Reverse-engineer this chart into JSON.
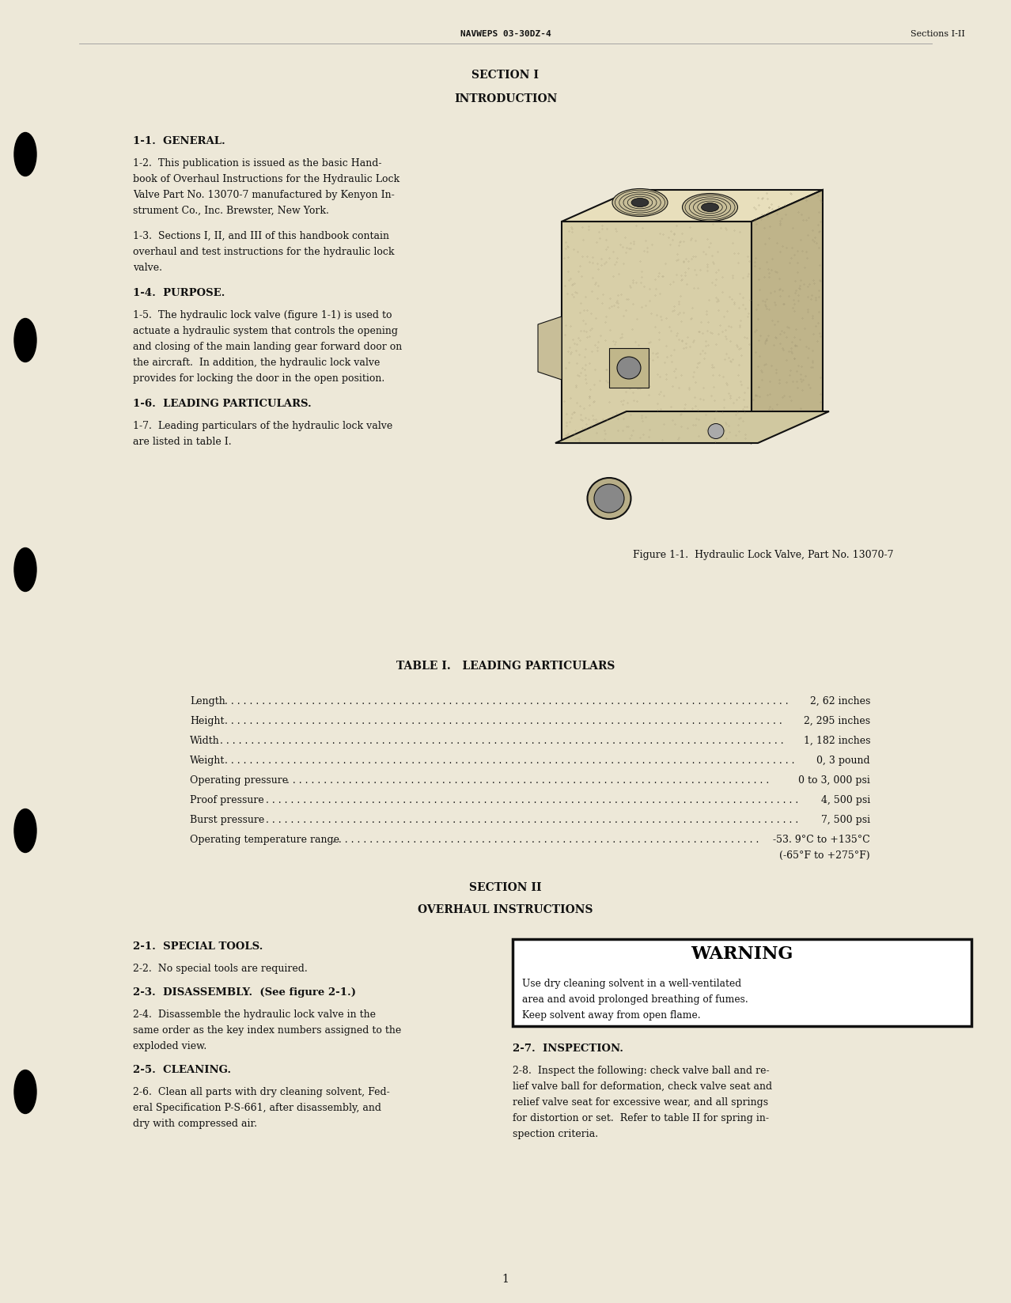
{
  "bg_color": "#ede8d8",
  "text_color": "#111111",
  "header_center": "NAVWEPS 03-30DZ-4",
  "header_right": "Sections I-II",
  "section1_title": "SECTION I",
  "section1_subtitle": "INTRODUCTION",
  "para_1_1": "1-1.  GENERAL.",
  "para_1_2_lines": [
    "1-2.  This publication is issued as the basic Hand-",
    "book of Overhaul Instructions for the Hydraulic Lock",
    "Valve Part No. 13070-7 manufactured by Kenyon In-",
    "strument Co., Inc. Brewster, New York."
  ],
  "para_1_3_lines": [
    "1-3.  Sections I, II, and III of this handbook contain",
    "overhaul and test instructions for the hydraulic lock",
    "valve."
  ],
  "para_1_4": "1-4.  PURPOSE.",
  "para_1_5_lines": [
    "1-5.  The hydraulic lock valve (figure 1-1) is used to",
    "actuate a hydraulic system that controls the opening",
    "and closing of the main landing gear forward door on",
    "the aircraft.  In addition, the hydraulic lock valve",
    "provides for locking the door in the open position."
  ],
  "para_1_6": "1-6.  LEADING PARTICULARS.",
  "para_1_7_lines": [
    "1-7.  Leading particulars of the hydraulic lock valve",
    "are listed in table I."
  ],
  "fig_caption": "Figure 1-1.  Hydraulic Lock Valve, Part No. 13070-7",
  "table_title": "TABLE I.   LEADING PARTICULARS",
  "table_rows": [
    [
      "Length",
      "2, 62 inches"
    ],
    [
      "Height",
      "2, 295 inches"
    ],
    [
      "Width",
      "1, 182 inches"
    ],
    [
      "Weight",
      "0, 3 pound"
    ],
    [
      "Operating pressure",
      "0 to 3, 000 psi"
    ],
    [
      "Proof pressure",
      "4, 500 psi"
    ],
    [
      "Burst pressure",
      "7, 500 psi"
    ],
    [
      "Operating temperature range",
      "-53. 9°C to +135°C"
    ]
  ],
  "table_last_line": "(-65°F to +275°F)",
  "section2_title": "SECTION II",
  "section2_subtitle": "OVERHAUL INSTRUCTIONS",
  "para_2_1": "2-1.  SPECIAL TOOLS.",
  "para_2_2": "2-2.  No special tools are required.",
  "para_2_3": "2-3.  DISASSEMBLY.  (See figure 2-1.)",
  "para_2_4_lines": [
    "2-4.  Disassemble the hydraulic lock valve in the",
    "same order as the key index numbers assigned to the",
    "exploded view."
  ],
  "para_2_5": "2-5.  CLEANING.",
  "para_2_6_lines": [
    "2-6.  Clean all parts with dry cleaning solvent, Fed-",
    "eral Specification P-S-661, after disassembly, and",
    "dry with compressed air."
  ],
  "warning_title": "WARNING",
  "warning_lines": [
    "Use dry cleaning solvent in a well-ventilated",
    "area and avoid prolonged breathing of fumes.",
    "Keep solvent away from open flame."
  ],
  "para_2_7": "2-7.  INSPECTION.",
  "para_2_8_lines": [
    "2-8.  Inspect the following: check valve ball and re-",
    "lief valve ball for deformation, check valve seat and",
    "relief valve seat for excessive wear, and all springs",
    "for distortion or set.  Refer to table II for spring in-",
    "spection criteria."
  ],
  "page_number": "1"
}
